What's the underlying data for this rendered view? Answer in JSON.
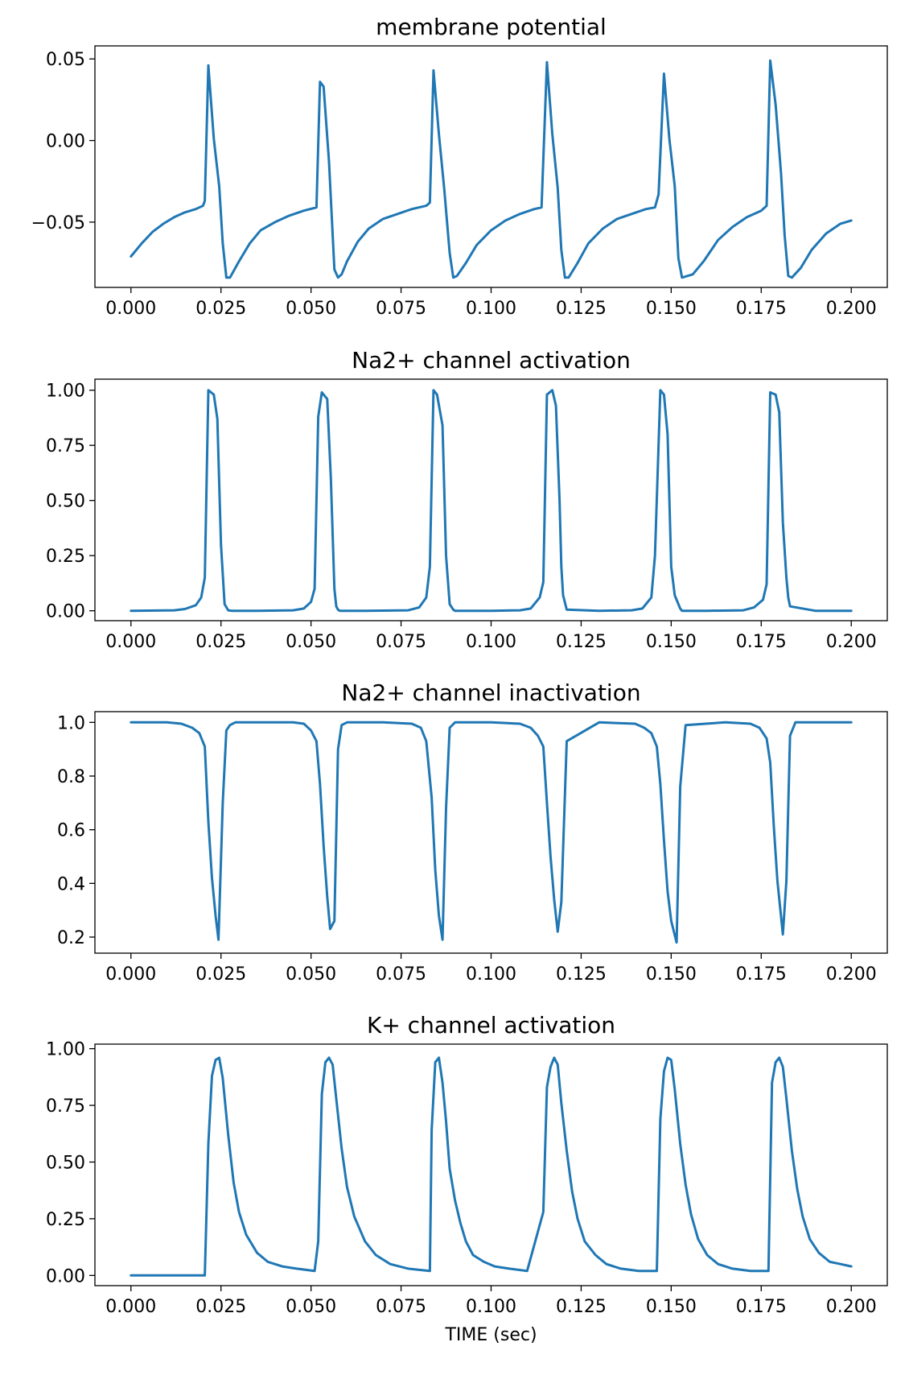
{
  "figure": {
    "background": "#ffffff",
    "line_color": "#1f77b4"
  },
  "chart_data": [
    {
      "type": "line",
      "title": "membrane potential",
      "xlabel": "",
      "ylabel": "",
      "xlim": [
        -0.01,
        0.21
      ],
      "ylim": [
        -0.09,
        0.058
      ],
      "xticks": [
        0.0,
        0.025,
        0.05,
        0.075,
        0.1,
        0.125,
        0.15,
        0.175,
        0.2
      ],
      "xtick_labels": [
        "0.000",
        "0.025",
        "0.050",
        "0.075",
        "0.100",
        "0.125",
        "0.150",
        "0.175",
        "0.200"
      ],
      "yticks": [
        0.05,
        0.0,
        -0.05
      ],
      "ytick_labels": [
        "0.05",
        "0.00",
        "−0.05"
      ],
      "grid": false,
      "series": [
        {
          "x": [
            0,
            0.003,
            0.006,
            0.009,
            0.012,
            0.015,
            0.018,
            0.02,
            0.0205,
            0.0215,
            0.023,
            0.0245,
            0.0255,
            0.0265,
            0.0275,
            0.03,
            0.033,
            0.036,
            0.04,
            0.044,
            0.048,
            0.0515,
            0.0525,
            0.0535,
            0.055,
            0.0565,
            0.0575,
            0.0585,
            0.06,
            0.063,
            0.066,
            0.07,
            0.074,
            0.078,
            0.082,
            0.083,
            0.084,
            0.0855,
            0.087,
            0.0885,
            0.0895,
            0.0905,
            0.093,
            0.096,
            0.1,
            0.104,
            0.108,
            0.112,
            0.114,
            0.1155,
            0.117,
            0.1185,
            0.1195,
            0.1205,
            0.1215,
            0.124,
            0.127,
            0.131,
            0.135,
            0.139,
            0.143,
            0.1455,
            0.1465,
            0.148,
            0.1495,
            0.151,
            0.152,
            0.153,
            0.156,
            0.159,
            0.163,
            0.167,
            0.171,
            0.175,
            0.1765,
            0.1775,
            0.179,
            0.1805,
            0.1815,
            0.1825,
            0.1835,
            0.186,
            0.189,
            0.193,
            0.197,
            0.2
          ],
          "y": [
            -0.071,
            -0.063,
            -0.056,
            -0.051,
            -0.047,
            -0.044,
            -0.042,
            -0.04,
            -0.037,
            0.046,
            0.001,
            -0.028,
            -0.063,
            -0.084,
            -0.084,
            -0.074,
            -0.063,
            -0.055,
            -0.05,
            -0.046,
            -0.043,
            -0.041,
            0.036,
            0.033,
            -0.013,
            -0.079,
            -0.084,
            -0.082,
            -0.074,
            -0.062,
            -0.054,
            -0.048,
            -0.045,
            -0.042,
            -0.04,
            -0.038,
            0.043,
            0.004,
            -0.03,
            -0.069,
            -0.084,
            -0.083,
            -0.075,
            -0.064,
            -0.055,
            -0.049,
            -0.045,
            -0.042,
            -0.041,
            0.048,
            0.004,
            -0.029,
            -0.067,
            -0.084,
            -0.084,
            -0.075,
            -0.063,
            -0.054,
            -0.048,
            -0.045,
            -0.042,
            -0.041,
            -0.033,
            0.041,
            0.001,
            -0.028,
            -0.072,
            -0.084,
            -0.082,
            -0.074,
            -0.061,
            -0.053,
            -0.047,
            -0.043,
            -0.04,
            0.049,
            0.022,
            -0.02,
            -0.058,
            -0.083,
            -0.084,
            -0.078,
            -0.067,
            -0.057,
            -0.051,
            -0.049
          ]
        }
      ]
    },
    {
      "type": "line",
      "title": "Na2+ channel activation",
      "xlabel": "",
      "ylabel": "",
      "xlim": [
        -0.01,
        0.21
      ],
      "ylim": [
        -0.045,
        1.05
      ],
      "xticks": [
        0.0,
        0.025,
        0.05,
        0.075,
        0.1,
        0.125,
        0.15,
        0.175,
        0.2
      ],
      "xtick_labels": [
        "0.000",
        "0.025",
        "0.050",
        "0.075",
        "0.100",
        "0.125",
        "0.150",
        "0.175",
        "0.200"
      ],
      "yticks": [
        1.0,
        0.75,
        0.5,
        0.25,
        0.0
      ],
      "ytick_labels": [
        "1.00",
        "0.75",
        "0.50",
        "0.25",
        "0.00"
      ],
      "grid": false,
      "series": [
        {
          "x": [
            0,
            0.012,
            0.015,
            0.018,
            0.0195,
            0.0205,
            0.0215,
            0.023,
            0.024,
            0.025,
            0.026,
            0.027,
            0.028,
            0.035,
            0.045,
            0.048,
            0.05,
            0.051,
            0.052,
            0.053,
            0.0545,
            0.0555,
            0.0565,
            0.057,
            0.0575,
            0.058,
            0.065,
            0.077,
            0.08,
            0.082,
            0.083,
            0.084,
            0.085,
            0.0865,
            0.0875,
            0.0885,
            0.0895,
            0.09,
            0.1,
            0.108,
            0.111,
            0.1135,
            0.1145,
            0.1155,
            0.117,
            0.118,
            0.119,
            0.1195,
            0.12,
            0.121,
            0.13,
            0.139,
            0.142,
            0.1445,
            0.1455,
            0.147,
            0.148,
            0.149,
            0.15,
            0.151,
            0.1525,
            0.153,
            0.16,
            0.17,
            0.173,
            0.1755,
            0.1765,
            0.1775,
            0.179,
            0.18,
            0.181,
            0.182,
            0.1825,
            0.183,
            0.19,
            0.2
          ],
          "y": [
            0,
            0.002,
            0.008,
            0.025,
            0.06,
            0.15,
            1.0,
            0.98,
            0.87,
            0.3,
            0.03,
            0.002,
            0,
            0,
            0.002,
            0.01,
            0.04,
            0.1,
            0.88,
            0.99,
            0.96,
            0.6,
            0.1,
            0.02,
            0.005,
            0,
            0,
            0.002,
            0.015,
            0.06,
            0.2,
            1.0,
            0.98,
            0.84,
            0.25,
            0.03,
            0.005,
            0,
            0,
            0.002,
            0.01,
            0.06,
            0.13,
            0.98,
            1.0,
            0.93,
            0.5,
            0.2,
            0.07,
            0.005,
            0,
            0.002,
            0.01,
            0.06,
            0.25,
            1.0,
            0.98,
            0.8,
            0.2,
            0.07,
            0.01,
            0,
            0,
            0.002,
            0.015,
            0.05,
            0.12,
            0.99,
            0.98,
            0.9,
            0.4,
            0.15,
            0.06,
            0.02,
            0,
            0
          ]
        }
      ]
    },
    {
      "type": "line",
      "title": "Na2+ channel inactivation",
      "xlabel": "",
      "ylabel": "",
      "xlim": [
        -0.01,
        0.21
      ],
      "ylim": [
        0.14,
        1.04
      ],
      "xticks": [
        0.0,
        0.025,
        0.05,
        0.075,
        0.1,
        0.125,
        0.15,
        0.175,
        0.2
      ],
      "xtick_labels": [
        "0.000",
        "0.025",
        "0.050",
        "0.075",
        "0.100",
        "0.125",
        "0.150",
        "0.175",
        "0.200"
      ],
      "yticks": [
        1.0,
        0.8,
        0.6,
        0.4,
        0.2
      ],
      "ytick_labels": [
        "1.0",
        "0.8",
        "0.6",
        "0.4",
        "0.2"
      ],
      "grid": false,
      "series": [
        {
          "x": [
            0,
            0.01,
            0.014,
            0.017,
            0.019,
            0.0205,
            0.0215,
            0.0225,
            0.0235,
            0.0243,
            0.0255,
            0.0265,
            0.0275,
            0.029,
            0.035,
            0.045,
            0.048,
            0.05,
            0.0515,
            0.0525,
            0.0535,
            0.0545,
            0.0553,
            0.0565,
            0.0575,
            0.0585,
            0.06,
            0.07,
            0.078,
            0.0805,
            0.082,
            0.0835,
            0.0845,
            0.0855,
            0.0865,
            0.0875,
            0.0885,
            0.09,
            0.1,
            0.108,
            0.111,
            0.113,
            0.1145,
            0.1155,
            0.1165,
            0.1175,
            0.1185,
            0.1195,
            0.121,
            0.13,
            0.14,
            0.1425,
            0.1445,
            0.146,
            0.147,
            0.148,
            0.149,
            0.15,
            0.1515,
            0.1525,
            0.154,
            0.165,
            0.172,
            0.1745,
            0.1765,
            0.1775,
            0.1785,
            0.1795,
            0.181,
            0.182,
            0.183,
            0.1845,
            0.19,
            0.2
          ],
          "y": [
            1.0,
            1.0,
            0.995,
            0.98,
            0.96,
            0.91,
            0.63,
            0.42,
            0.28,
            0.19,
            0.7,
            0.97,
            0.99,
            1.0,
            1.0,
            1.0,
            0.995,
            0.97,
            0.93,
            0.77,
            0.54,
            0.35,
            0.23,
            0.26,
            0.9,
            0.99,
            1.0,
            1.0,
            0.995,
            0.98,
            0.93,
            0.72,
            0.45,
            0.28,
            0.19,
            0.68,
            0.98,
            1.0,
            1.0,
            0.995,
            0.98,
            0.95,
            0.91,
            0.7,
            0.5,
            0.34,
            0.22,
            0.33,
            0.93,
            1.0,
            0.995,
            0.98,
            0.96,
            0.91,
            0.77,
            0.56,
            0.37,
            0.26,
            0.18,
            0.76,
            0.99,
            1.0,
            0.995,
            0.98,
            0.94,
            0.85,
            0.61,
            0.41,
            0.21,
            0.41,
            0.95,
            1.0,
            1.0,
            1.0
          ]
        }
      ]
    },
    {
      "type": "line",
      "title": "K+ channel activation",
      "xlabel": "TIME (sec)",
      "ylabel": "",
      "xlim": [
        -0.01,
        0.21
      ],
      "ylim": [
        -0.045,
        1.02
      ],
      "xticks": [
        0.0,
        0.025,
        0.05,
        0.075,
        0.1,
        0.125,
        0.15,
        0.175,
        0.2
      ],
      "xtick_labels": [
        "0.000",
        "0.025",
        "0.050",
        "0.075",
        "0.100",
        "0.125",
        "0.150",
        "0.175",
        "0.200"
      ],
      "yticks": [
        1.0,
        0.75,
        0.5,
        0.25,
        0.0
      ],
      "ytick_labels": [
        "1.00",
        "0.75",
        "0.50",
        "0.25",
        "0.00"
      ],
      "grid": false,
      "series": [
        {
          "x": [
            0,
            0.0205,
            0.0215,
            0.0225,
            0.0235,
            0.0245,
            0.0255,
            0.027,
            0.0285,
            0.03,
            0.032,
            0.035,
            0.038,
            0.042,
            0.046,
            0.051,
            0.052,
            0.053,
            0.054,
            0.055,
            0.056,
            0.057,
            0.0585,
            0.06,
            0.062,
            0.065,
            0.068,
            0.072,
            0.077,
            0.083,
            0.0835,
            0.0845,
            0.0855,
            0.0865,
            0.0875,
            0.0885,
            0.09,
            0.0915,
            0.093,
            0.095,
            0.098,
            0.101,
            0.105,
            0.11,
            0.1145,
            0.1155,
            0.1165,
            0.1175,
            0.1185,
            0.1195,
            0.121,
            0.1225,
            0.124,
            0.126,
            0.129,
            0.132,
            0.136,
            0.141,
            0.146,
            0.147,
            0.148,
            0.149,
            0.15,
            0.151,
            0.1525,
            0.154,
            0.1555,
            0.1575,
            0.16,
            0.163,
            0.167,
            0.172,
            0.177,
            0.178,
            0.179,
            0.18,
            0.181,
            0.182,
            0.1835,
            0.185,
            0.1865,
            0.1885,
            0.191,
            0.194,
            0.197,
            0.2
          ],
          "y": [
            0,
            0,
            0.58,
            0.88,
            0.95,
            0.96,
            0.87,
            0.62,
            0.41,
            0.28,
            0.18,
            0.1,
            0.06,
            0.04,
            0.03,
            0.02,
            0.15,
            0.8,
            0.94,
            0.96,
            0.93,
            0.78,
            0.56,
            0.39,
            0.26,
            0.15,
            0.09,
            0.05,
            0.03,
            0.02,
            0.64,
            0.94,
            0.96,
            0.85,
            0.68,
            0.47,
            0.33,
            0.23,
            0.15,
            0.09,
            0.06,
            0.04,
            0.03,
            0.02,
            0.28,
            0.83,
            0.92,
            0.96,
            0.93,
            0.76,
            0.55,
            0.37,
            0.25,
            0.15,
            0.09,
            0.05,
            0.03,
            0.02,
            0.02,
            0.69,
            0.9,
            0.96,
            0.95,
            0.82,
            0.58,
            0.4,
            0.27,
            0.16,
            0.09,
            0.05,
            0.03,
            0.02,
            0.02,
            0.85,
            0.94,
            0.96,
            0.92,
            0.78,
            0.55,
            0.38,
            0.26,
            0.16,
            0.1,
            0.06,
            0.05,
            0.04
          ]
        }
      ]
    }
  ]
}
